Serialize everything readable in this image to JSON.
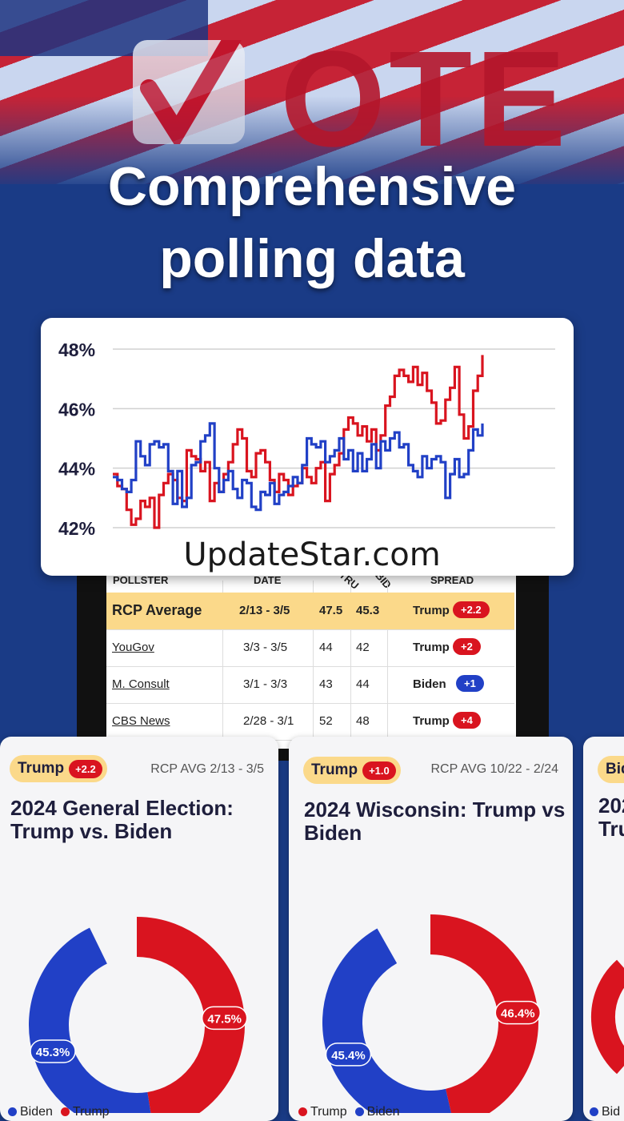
{
  "hero": {
    "vote_word": "OTE",
    "headline_line1": "Comprehensive",
    "headline_line2": "polling data"
  },
  "watermark": "UpdateStar.com",
  "colors": {
    "trump": "#d9141f",
    "biden": "#2140c6",
    "avg_bg": "#fbd98a",
    "background": "#1a3b86"
  },
  "table": {
    "headers": {
      "pollster": "POLLSTER",
      "date": "DATE",
      "trump": "TRU",
      "biden": "BID",
      "spread": "SPREAD"
    },
    "rows": [
      {
        "pollster": "RCP Average",
        "date": "2/13 - 3/5",
        "trump": "47.5",
        "biden": "45.3",
        "leader": "Trump",
        "spread": "+2.2"
      },
      {
        "pollster": "YouGov",
        "date": "3/3 - 3/5",
        "trump": "44",
        "biden": "42",
        "leader": "Trump",
        "spread": "+2"
      },
      {
        "pollster": "M. Consult",
        "date": "3/1 - 3/3",
        "trump": "43",
        "biden": "44",
        "leader": "Biden",
        "spread": "+1"
      },
      {
        "pollster": "CBS News",
        "date": "2/28 - 3/1",
        "trump": "52",
        "biden": "48",
        "leader": "Trump",
        "spread": "+4"
      }
    ]
  },
  "chart_data": {
    "type": "line",
    "ylim": [
      42,
      48
    ],
    "yticks": [
      "48%",
      "46%",
      "44%",
      "42%"
    ],
    "series": [
      {
        "name": "Trump",
        "color": "#d9141f",
        "values": [
          43.8,
          43.4,
          43.3,
          42.6,
          42.1,
          42.3,
          42.9,
          42.7,
          43.0,
          42.0,
          43.1,
          43.5,
          43.8,
          43.6,
          43.0,
          42.9,
          44.6,
          44.4,
          44.3,
          43.9,
          44.2,
          42.9,
          43.5,
          43.2,
          43.8,
          44.2,
          44.8,
          45.3,
          45.0,
          43.9,
          43.7,
          44.5,
          44.6,
          44.2,
          43.6,
          43.2,
          43.8,
          43.6,
          43.1,
          43.4,
          43.5,
          44.0,
          43.7,
          43.5,
          44.0,
          44.2,
          42.9,
          43.8,
          44.1,
          44.5,
          45.3,
          45.7,
          45.5,
          45.1,
          45.4,
          44.9,
          45.3,
          44.6,
          45.1,
          46.1,
          46.4,
          47.1,
          47.3,
          47.1,
          46.9,
          47.4,
          46.8,
          47.2,
          46.6,
          46.2,
          45.5,
          45.6,
          46.3,
          46.7,
          47.4,
          45.8,
          45.0,
          45.4,
          46.6,
          47.1,
          47.8
        ]
      },
      {
        "name": "Biden",
        "color": "#2140c6",
        "values": [
          43.7,
          43.6,
          43.3,
          43.2,
          43.6,
          44.9,
          44.4,
          44.1,
          44.8,
          44.9,
          44.7,
          44.8,
          43.9,
          42.8,
          43.9,
          42.7,
          43.0,
          44.1,
          44.2,
          44.9,
          45.1,
          45.5,
          44.0,
          43.2,
          43.6,
          43.9,
          43.3,
          43.0,
          43.6,
          43.5,
          42.7,
          42.6,
          43.2,
          43.1,
          43.5,
          42.8,
          43.1,
          43.2,
          43.4,
          43.7,
          43.5,
          44.1,
          45.0,
          44.8,
          44.7,
          44.9,
          44.2,
          44.4,
          44.6,
          45.0,
          44.3,
          44.6,
          43.9,
          44.5,
          43.9,
          44.3,
          44.8,
          44.0,
          44.9,
          44.6,
          45.0,
          45.2,
          44.7,
          44.8,
          44.1,
          43.9,
          43.7,
          44.4,
          44.0,
          44.3,
          44.4,
          44.2,
          43.0,
          43.8,
          44.3,
          43.7,
          43.8,
          44.6,
          45.3,
          45.1,
          45.5
        ]
      }
    ]
  },
  "cards": [
    {
      "leader": "Trump",
      "spread": "+2.2",
      "avg": "RCP AVG 2/13 - 3/5",
      "title": "2024 General Election: Trump vs. Biden",
      "chart_data": {
        "type": "pie",
        "slices": [
          {
            "label": "Trump",
            "value": 47.5,
            "text": "47.5%"
          },
          {
            "label": "Biden",
            "value": 45.3,
            "text": "45.3%"
          }
        ]
      },
      "legend": [
        "Biden",
        "Trump"
      ]
    },
    {
      "leader": "Trump",
      "spread": "+1.0",
      "avg": "RCP AVG 10/22 - 2/24",
      "title": "2024 Wisconsin: Trump vs Biden",
      "chart_data": {
        "type": "pie",
        "slices": [
          {
            "label": "Trump",
            "value": 46.4,
            "text": "46.4%"
          },
          {
            "label": "Biden",
            "value": 45.4,
            "text": "45.4%"
          }
        ]
      },
      "legend": [
        "Trump",
        "Biden"
      ]
    },
    {
      "leader": "Bid",
      "title_a": "202",
      "title_b": "Tru",
      "legend": [
        "Bid"
      ]
    }
  ]
}
